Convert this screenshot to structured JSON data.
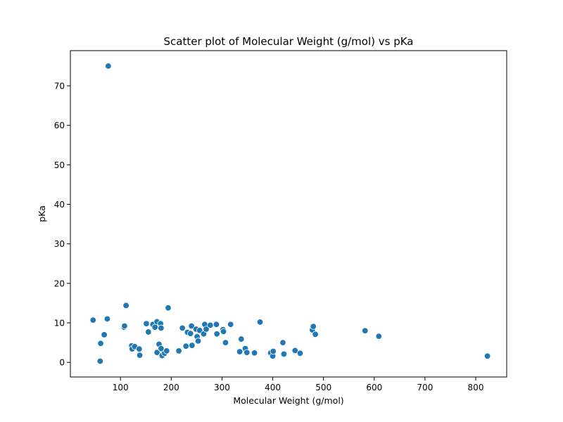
{
  "chart_data": {
    "type": "scatter",
    "title": "Scatter plot of Molecular Weight (g/mol) vs pKa",
    "xlabel": "Molecular Weight (g/mol)",
    "ylabel": "pKa",
    "xlim": [
      1.3,
      861
    ],
    "ylim": [
      -3.7,
      78.9
    ],
    "xticks": [
      100,
      200,
      300,
      400,
      500,
      600,
      700,
      800
    ],
    "yticks": [
      0,
      10,
      20,
      30,
      40,
      50,
      60,
      70
    ],
    "grid": false,
    "marker_color": "#1f77b4",
    "points": [
      {
        "x": 46,
        "y": 10.7
      },
      {
        "x": 60,
        "y": 0.3
      },
      {
        "x": 61,
        "y": 4.8
      },
      {
        "x": 68,
        "y": 7.0
      },
      {
        "x": 74,
        "y": 11.0
      },
      {
        "x": 76,
        "y": 75.0
      },
      {
        "x": 107,
        "y": 8.9
      },
      {
        "x": 108,
        "y": 9.2
      },
      {
        "x": 111,
        "y": 14.4
      },
      {
        "x": 122,
        "y": 4.2
      },
      {
        "x": 123,
        "y": 3.4
      },
      {
        "x": 128,
        "y": 4.0
      },
      {
        "x": 137,
        "y": 3.4
      },
      {
        "x": 138,
        "y": 1.8
      },
      {
        "x": 151,
        "y": 9.8
      },
      {
        "x": 155,
        "y": 7.7
      },
      {
        "x": 164,
        "y": 9.6
      },
      {
        "x": 168,
        "y": 8.9
      },
      {
        "x": 172,
        "y": 10.3
      },
      {
        "x": 172,
        "y": 2.5
      },
      {
        "x": 176,
        "y": 4.6
      },
      {
        "x": 179,
        "y": 9.8
      },
      {
        "x": 180,
        "y": 8.7
      },
      {
        "x": 180,
        "y": 3.5
      },
      {
        "x": 182,
        "y": 1.7
      },
      {
        "x": 187,
        "y": 2.3
      },
      {
        "x": 191,
        "y": 2.9
      },
      {
        "x": 194,
        "y": 13.8
      },
      {
        "x": 215,
        "y": 2.9
      },
      {
        "x": 222,
        "y": 8.7
      },
      {
        "x": 229,
        "y": 4.1
      },
      {
        "x": 232,
        "y": 7.6
      },
      {
        "x": 238,
        "y": 7.3
      },
      {
        "x": 240,
        "y": 9.2
      },
      {
        "x": 241,
        "y": 4.3
      },
      {
        "x": 249,
        "y": 8.4
      },
      {
        "x": 251,
        "y": 6.5
      },
      {
        "x": 253,
        "y": 5.4
      },
      {
        "x": 256,
        "y": 8.1
      },
      {
        "x": 264,
        "y": 7.2
      },
      {
        "x": 266,
        "y": 9.6
      },
      {
        "x": 269,
        "y": 8.4
      },
      {
        "x": 277,
        "y": 9.4
      },
      {
        "x": 289,
        "y": 9.6
      },
      {
        "x": 290,
        "y": 7.2
      },
      {
        "x": 302,
        "y": 8.3
      },
      {
        "x": 303,
        "y": 7.8
      },
      {
        "x": 307,
        "y": 5.0
      },
      {
        "x": 317,
        "y": 9.6
      },
      {
        "x": 335,
        "y": 2.7
      },
      {
        "x": 338,
        "y": 5.9
      },
      {
        "x": 346,
        "y": 3.5
      },
      {
        "x": 349,
        "y": 2.5
      },
      {
        "x": 364,
        "y": 2.4
      },
      {
        "x": 375,
        "y": 10.2
      },
      {
        "x": 396,
        "y": 2.4
      },
      {
        "x": 400,
        "y": 1.6
      },
      {
        "x": 401,
        "y": 2.8
      },
      {
        "x": 420,
        "y": 5.0
      },
      {
        "x": 422,
        "y": 2.1
      },
      {
        "x": 444,
        "y": 3.0
      },
      {
        "x": 454,
        "y": 2.3
      },
      {
        "x": 478,
        "y": 8.2
      },
      {
        "x": 480,
        "y": 9.1
      },
      {
        "x": 484,
        "y": 7.1
      },
      {
        "x": 582,
        "y": 8.0
      },
      {
        "x": 609,
        "y": 6.6
      },
      {
        "x": 823,
        "y": 1.6
      }
    ]
  }
}
